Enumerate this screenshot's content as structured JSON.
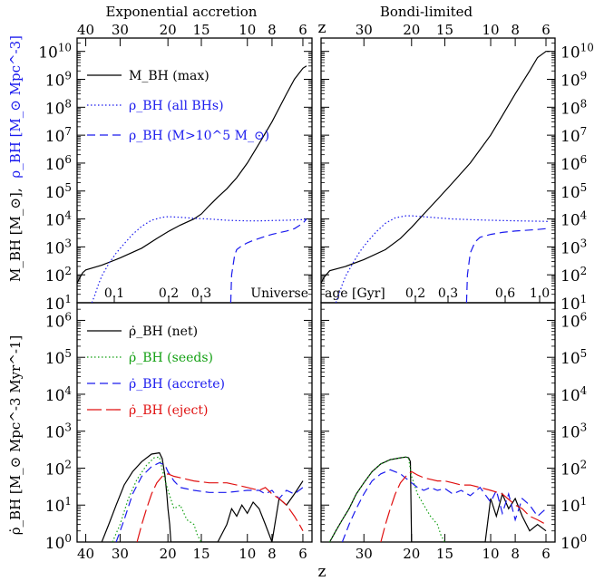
{
  "titles": {
    "left": "Exponential accretion",
    "right": "Bondi-limited",
    "z_top": "z",
    "z_bottom": "z"
  },
  "top_axes": {
    "z_ticks_left": [
      "40",
      "30",
      "20",
      "15",
      "10",
      "8",
      "6"
    ],
    "z_ticks_right": [
      "30",
      "20",
      "15",
      "10",
      "8",
      "6"
    ],
    "age_ticks_left": [
      "0.1",
      "0.2",
      "0.3"
    ],
    "age_ticks_right": [
      "0.2",
      "0.3",
      "0.6",
      "1.0"
    ],
    "age_label_left": "Universe",
    "age_label_right": "age [Gyr]",
    "y_ticks": [
      "10^1",
      "10^2",
      "10^3",
      "10^4",
      "10^5",
      "10^6",
      "10^7",
      "10^8",
      "10^9",
      "10^10"
    ],
    "ylabel_black": "M_BH [M_⊙],",
    "ylabel_blue": "ρ_BH [M_⊙ Mpc^-3]",
    "legend": [
      {
        "label": "M_BH (max)",
        "color": "#000000",
        "dash": "solid"
      },
      {
        "label": "ρ_BH (all BHs)",
        "color": "#1a1aee",
        "dash": "dotted"
      },
      {
        "label": "ρ_BH (M>10^5 M_⊙)",
        "color": "#1a1aee",
        "dash": "dashed"
      }
    ]
  },
  "bottom_axes": {
    "z_ticks_left": [
      "40",
      "30",
      "20",
      "15",
      "10",
      "8",
      "6"
    ],
    "z_ticks_right": [
      "30",
      "20",
      "15",
      "10",
      "8",
      "6"
    ],
    "y_ticks": [
      "10^0",
      "10^1",
      "10^2",
      "10^3",
      "10^4",
      "10^5",
      "10^6"
    ],
    "ylabel": "ρ̇_BH [M_⊙ Mpc^-3 Myr^-1]",
    "legend": [
      {
        "label": "ρ̇_BH (net)",
        "color": "#000000",
        "dash": "solid"
      },
      {
        "label": "ρ̇_BH (seeds)",
        "color": "#13a013",
        "dash": "dotted"
      },
      {
        "label": "ρ̇_BH (accrete)",
        "color": "#1a1aee",
        "dash": "dashed"
      },
      {
        "label": "ρ̇_BH (eject)",
        "color": "#e01010",
        "dash": "longdash"
      }
    ]
  },
  "chart_data": [
    {
      "type": "line",
      "panel": "top-left",
      "title": "Exponential accretion",
      "xlabel": "z",
      "ylabel": "M_BH [M_⊙], ρ_BH [M_⊙ Mpc^-3]",
      "x_scale": "log(1+z)",
      "xlim": [
        43,
        5.5
      ],
      "y_scale": "log",
      "ylim": [
        10,
        30000000000.0
      ],
      "series": [
        {
          "name": "M_BH (max)",
          "color": "#000000",
          "dash": "solid",
          "x": [
            43,
            42,
            41,
            40,
            35,
            30,
            25,
            22,
            20,
            18,
            16,
            15,
            14,
            13,
            12,
            11,
            10,
            9,
            8,
            7,
            6.5,
            6,
            5.8
          ],
          "y": [
            50,
            80,
            120,
            150,
            220,
            400,
            900,
            2000,
            3500,
            6000,
            10000,
            15000,
            30000,
            60000,
            120000,
            300000,
            1000000,
            5000000,
            30000000,
            300000000,
            1000000000,
            2500000000,
            3000000000
          ]
        },
        {
          "name": "ρ_BH (all BHs)",
          "color": "#1a1aee",
          "dash": "dotted",
          "x": [
            38,
            37,
            36,
            35,
            33,
            31,
            29,
            27,
            25,
            23,
            21,
            20,
            18,
            16,
            14,
            12,
            10,
            9,
            8,
            7,
            6,
            5.8
          ],
          "y": [
            10,
            20,
            45,
            90,
            250,
            600,
            1300,
            2800,
            5500,
            9000,
            11500,
            12000,
            11500,
            10500,
            10000,
            9000,
            8500,
            8500,
            8800,
            9000,
            9500,
            10000
          ]
        },
        {
          "name": "ρ_BH (M>10^5 M_⊙)",
          "color": "#1a1aee",
          "dash": "dashed",
          "x": [
            11.6,
            11.5,
            11.2,
            11,
            10.5,
            10,
            9.5,
            9,
            8.5,
            8,
            7.5,
            7,
            6.5,
            6,
            5.8
          ],
          "y": [
            10,
            100,
            500,
            800,
            1100,
            1400,
            1700,
            2000,
            2400,
            2800,
            3200,
            3700,
            4500,
            7000,
            10000
          ]
        }
      ]
    },
    {
      "type": "line",
      "panel": "top-right",
      "title": "Bondi-limited",
      "xlabel": "z",
      "x_scale": "log(1+z)",
      "xlim": [
        43,
        5.5
      ],
      "y_scale": "log",
      "ylim": [
        10,
        30000000000.0
      ],
      "series": [
        {
          "name": "M_BH (max)",
          "color": "#000000",
          "dash": "solid",
          "x": [
            43,
            42,
            40,
            35,
            30,
            25,
            22,
            20,
            18,
            16,
            14,
            12,
            10,
            9,
            8,
            7,
            6.5,
            6,
            5.8
          ],
          "y": [
            50,
            80,
            140,
            200,
            350,
            800,
            2000,
            5000,
            15000,
            50000,
            200000,
            1000000,
            10000000,
            50000000,
            300000000,
            2000000000,
            6000000000,
            10000000000,
            10000000000
          ]
        },
        {
          "name": "ρ_BH (all BHs)",
          "color": "#1a1aee",
          "dash": "dotted",
          "x": [
            38,
            37,
            36,
            35,
            33,
            31,
            29,
            27,
            25,
            23,
            21,
            20,
            18,
            16,
            14,
            12,
            10,
            9,
            8,
            7,
            6,
            5.8
          ],
          "y": [
            10,
            20,
            45,
            90,
            250,
            700,
            1600,
            3500,
            7000,
            11000,
            13000,
            13000,
            12000,
            11000,
            10000,
            9500,
            9000,
            8800,
            8600,
            8400,
            8200,
            8000
          ]
        },
        {
          "name": "ρ_BH (M>10^5 M_⊙)",
          "color": "#1a1aee",
          "dash": "dashed",
          "x": [
            12.4,
            12.3,
            12.0,
            11.5,
            11,
            10,
            9,
            8,
            7,
            6.5,
            6,
            5.8
          ],
          "y": [
            10,
            100,
            600,
            1500,
            2200,
            2800,
            3300,
            3700,
            4000,
            4200,
            4500,
            4500
          ]
        }
      ]
    },
    {
      "type": "line",
      "panel": "bottom-left",
      "xlabel": "z",
      "ylabel": "ρ̇_BH [M_⊙ Mpc^-3 Myr^-1]",
      "x_scale": "log(1+z)",
      "xlim": [
        43,
        5.5
      ],
      "y_scale": "log",
      "ylim": [
        1,
        3000000.0
      ],
      "series": [
        {
          "name": "ρ̇_BH (net)",
          "color": "#000000",
          "dash": "solid",
          "x": [
            35,
            33,
            31,
            29,
            27,
            25,
            23,
            21.5,
            21,
            20.5,
            20.2,
            20,
            19.7,
            19.5,
            13,
            12,
            11.5,
            11,
            10.5,
            10,
            9.5,
            9,
            8.5,
            8,
            7.5,
            7,
            6.5,
            6
          ],
          "y": [
            1,
            3,
            10,
            35,
            80,
            150,
            240,
            260,
            180,
            60,
            20,
            8,
            3,
            1,
            1,
            3,
            8,
            5,
            10,
            6,
            12,
            8,
            3,
            1,
            15,
            10,
            20,
            45
          ]
        },
        {
          "name": "ρ̇_BH (seeds)",
          "color": "#13a013",
          "dash": "dotted",
          "x": [
            32,
            30,
            28,
            26,
            24,
            22.5,
            21.5,
            21,
            20,
            19,
            18,
            17,
            16,
            15.5,
            15
          ],
          "y": [
            1,
            3,
            15,
            50,
            120,
            190,
            200,
            90,
            25,
            8,
            10,
            4,
            3,
            1.5,
            1
          ]
        },
        {
          "name": "ρ̇_BH (accrete)",
          "color": "#1a1aee",
          "dash": "dashed",
          "x": [
            31,
            29,
            27,
            25,
            23,
            21.5,
            20.5,
            20,
            19,
            18,
            16,
            14,
            12,
            10,
            9,
            8.5,
            8,
            7.5,
            7,
            6.5,
            6
          ],
          "y": [
            1,
            4,
            20,
            60,
            110,
            140,
            120,
            80,
            45,
            30,
            25,
            22,
            22,
            25,
            25,
            20,
            25,
            15,
            25,
            20,
            30
          ]
        },
        {
          "name": "ρ̇_BH (eject)",
          "color": "#e01010",
          "dash": "longdash",
          "x": [
            26,
            25,
            24,
            23,
            22,
            21,
            20,
            19,
            18,
            17,
            16,
            14,
            12,
            11,
            10,
            9,
            8.5,
            8,
            7.5,
            7,
            6.5,
            6.2,
            6
          ],
          "y": [
            1,
            3,
            8,
            20,
            40,
            60,
            70,
            60,
            55,
            50,
            45,
            40,
            40,
            35,
            30,
            25,
            30,
            20,
            15,
            10,
            5,
            3,
            2
          ]
        }
      ]
    },
    {
      "type": "line",
      "panel": "bottom-right",
      "xlabel": "z",
      "x_scale": "log(1+z)",
      "xlim": [
        43,
        5.5
      ],
      "y_scale": "log",
      "ylim": [
        1,
        3000000.0
      ],
      "series": [
        {
          "name": "ρ̇_BH (net)",
          "color": "#000000",
          "dash": "solid",
          "x": [
            40,
            38,
            36,
            34,
            32,
            30,
            28,
            26,
            24,
            22,
            21,
            20.5,
            20.2,
            20,
            19.8,
            10.5,
            10,
            9.5,
            9,
            8.5,
            8,
            7.5,
            7,
            6.5,
            6
          ],
          "y": [
            1,
            2,
            4,
            8,
            20,
            40,
            80,
            130,
            170,
            190,
            200,
            190,
            150,
            1,
            1,
            1,
            15,
            5,
            20,
            8,
            15,
            5,
            2,
            3,
            2
          ]
        },
        {
          "name": "ρ̇_BH (seeds)",
          "color": "#13a013",
          "dash": "dotted",
          "x": [
            40,
            38,
            36,
            34,
            32,
            30,
            28,
            26,
            24,
            22,
            21,
            20.5,
            20,
            19,
            18,
            17,
            16,
            15.5,
            15
          ],
          "y": [
            1,
            2,
            4,
            8,
            20,
            40,
            80,
            130,
            170,
            190,
            200,
            180,
            60,
            20,
            10,
            5,
            3,
            1.5,
            1
          ]
        },
        {
          "name": "ρ̇_BH (accrete)",
          "color": "#1a1aee",
          "dash": "dashed",
          "x": [
            36,
            34,
            32,
            30,
            28,
            26,
            24,
            22,
            20,
            19,
            18,
            17,
            16,
            15,
            14,
            13,
            12,
            11,
            10,
            9.5,
            9,
            8.5,
            8,
            7.5,
            7,
            6.5,
            6
          ],
          "y": [
            1,
            3,
            8,
            20,
            45,
            70,
            90,
            70,
            40,
            30,
            25,
            30,
            25,
            28,
            20,
            25,
            18,
            30,
            12,
            25,
            6,
            20,
            4,
            15,
            10,
            5,
            8
          ]
        },
        {
          "name": "ρ̇_BH (eject)",
          "color": "#e01010",
          "dash": "longdash",
          "x": [
            26,
            25,
            24,
            23,
            22,
            21,
            20,
            19,
            18,
            17,
            16,
            15,
            14,
            13,
            12,
            11,
            10,
            9,
            8,
            7.5,
            7,
            6.5,
            6
          ],
          "y": [
            1,
            3,
            8,
            20,
            40,
            60,
            80,
            65,
            55,
            50,
            45,
            45,
            40,
            35,
            35,
            30,
            25,
            20,
            10,
            8,
            5,
            4,
            3
          ]
        }
      ]
    }
  ]
}
